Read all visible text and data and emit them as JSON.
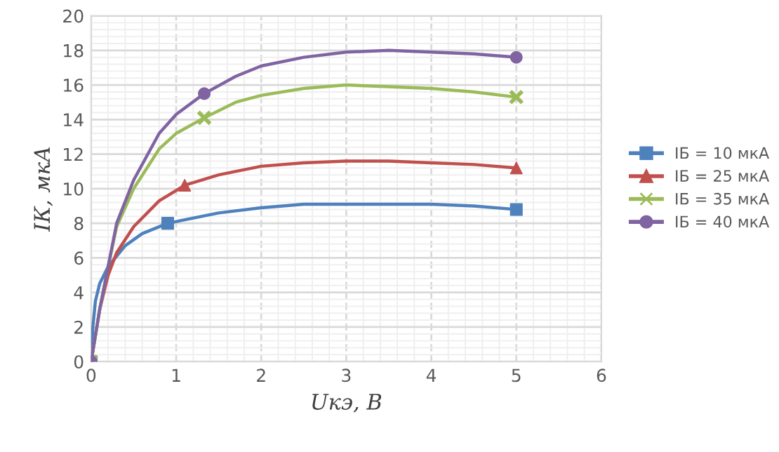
{
  "chart_data": {
    "type": "line",
    "xlabel": "Uкэ, В",
    "ylabel": "IК, мкА",
    "xlim": [
      0,
      6
    ],
    "xticks": [
      0,
      1,
      2,
      3,
      4,
      5,
      6
    ],
    "ylim": [
      0,
      20
    ],
    "yticks": [
      0,
      2,
      4,
      6,
      8,
      10,
      12,
      14,
      16,
      18,
      20
    ],
    "grid": true,
    "legend": "right",
    "line_style": "solid",
    "series": [
      {
        "color": "#4f81bd",
        "marker": "none",
        "x": [
          0,
          0.02,
          0.05,
          0.1,
          0.2,
          0.4,
          0.6,
          0.9,
          1.5,
          2,
          2.5,
          3,
          3.5,
          4,
          4.5,
          5
        ],
        "values": [
          0,
          2,
          3.5,
          4.5,
          5.5,
          6.7,
          7.4,
          8,
          8.6,
          8.9,
          9.1,
          9.1,
          9.1,
          9.1,
          9,
          8.8
        ]
      },
      {
        "color": "#c0504d",
        "marker": "none",
        "x": [
          0,
          0.05,
          0.1,
          0.2,
          0.3,
          0.5,
          0.8,
          1.1,
          1.5,
          2,
          2.5,
          3,
          3.5,
          4,
          4.5,
          5
        ],
        "values": [
          0,
          1.5,
          3,
          5,
          6.3,
          7.8,
          9.3,
          10.2,
          10.8,
          11.3,
          11.5,
          11.6,
          11.6,
          11.5,
          11.4,
          11.2
        ]
      },
      {
        "color": "#9bbb59",
        "marker": "none",
        "x": [
          0,
          0.05,
          0.1,
          0.2,
          0.3,
          0.5,
          0.8,
          1,
          1.33,
          1.7,
          2,
          2.5,
          3,
          3.5,
          4,
          4.5,
          5
        ],
        "values": [
          0,
          1.5,
          3,
          5.5,
          7.8,
          10,
          12.3,
          13.2,
          14.1,
          15,
          15.4,
          15.8,
          16,
          15.9,
          15.8,
          15.6,
          15.3
        ]
      },
      {
        "color": "#8064a2",
        "marker": "none",
        "x": [
          0,
          0.05,
          0.1,
          0.2,
          0.3,
          0.5,
          0.8,
          1,
          1.33,
          1.7,
          2,
          2.5,
          3,
          3.5,
          4,
          4.5,
          5
        ],
        "values": [
          0,
          1.5,
          3,
          5.5,
          8,
          10.5,
          13.2,
          14.3,
          15.5,
          16.5,
          17.1,
          17.6,
          17.9,
          18,
          17.9,
          17.8,
          17.6
        ]
      },
      {
        "type": "scatter",
        "name": "IБ = 10 мкА",
        "color": "#4f81bd",
        "marker": "square",
        "x": [
          0,
          0.9,
          5
        ],
        "values": [
          0,
          8,
          8.8
        ]
      },
      {
        "type": "scatter",
        "name": "IБ = 25 мкА",
        "color": "#c0504d",
        "marker": "triangle",
        "x": [
          0,
          1.1,
          5
        ],
        "values": [
          0,
          10.2,
          11.2
        ]
      },
      {
        "type": "scatter",
        "name": "IБ = 35 мкА",
        "color": "#9bbb59",
        "marker": "cross",
        "x": [
          0,
          1.33,
          5
        ],
        "values": [
          0,
          14.1,
          15.3
        ]
      },
      {
        "type": "scatter",
        "name": "IБ = 40 мкА",
        "color": "#8064a2",
        "marker": "circle",
        "x": [
          0,
          1.33,
          5
        ],
        "values": [
          0,
          15.5,
          17.6
        ]
      }
    ]
  }
}
